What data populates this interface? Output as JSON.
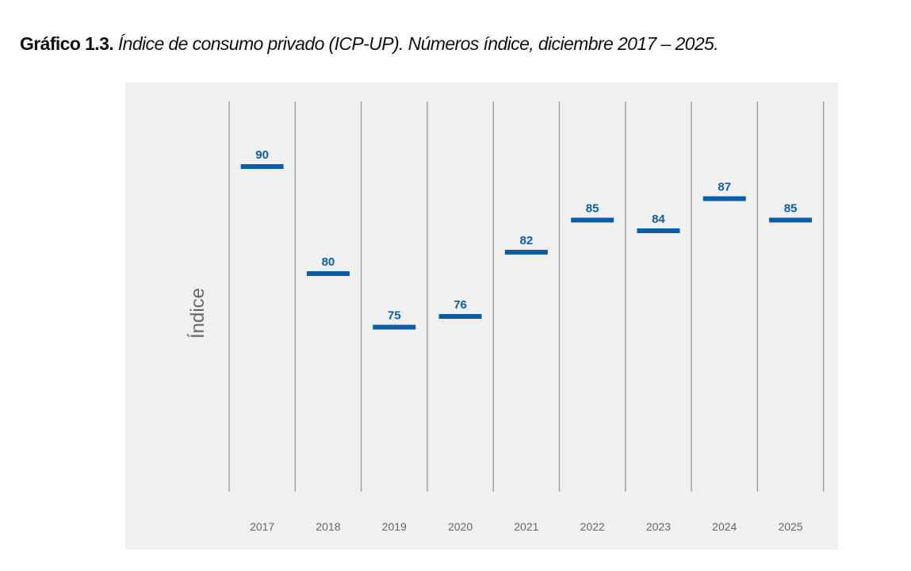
{
  "title": {
    "bold": "Gráfico 1.3.",
    "italic": " Índice de consumo privado (ICP-UP). Números índice, diciembre 2017 – 2025."
  },
  "chart_data": {
    "type": "dot",
    "title": "Índice de consumo privado (ICP-UP). Números índice, diciembre 2017 – 2025.",
    "xlabel": "",
    "ylabel": "Índice",
    "categories": [
      "2017",
      "2018",
      "2019",
      "2020",
      "2021",
      "2022",
      "2023",
      "2024",
      "2025"
    ],
    "values": [
      90,
      80,
      75,
      76,
      82,
      85,
      84,
      87,
      85
    ],
    "marker_color": "#0a5ea8",
    "grid": true,
    "legend": "none"
  }
}
